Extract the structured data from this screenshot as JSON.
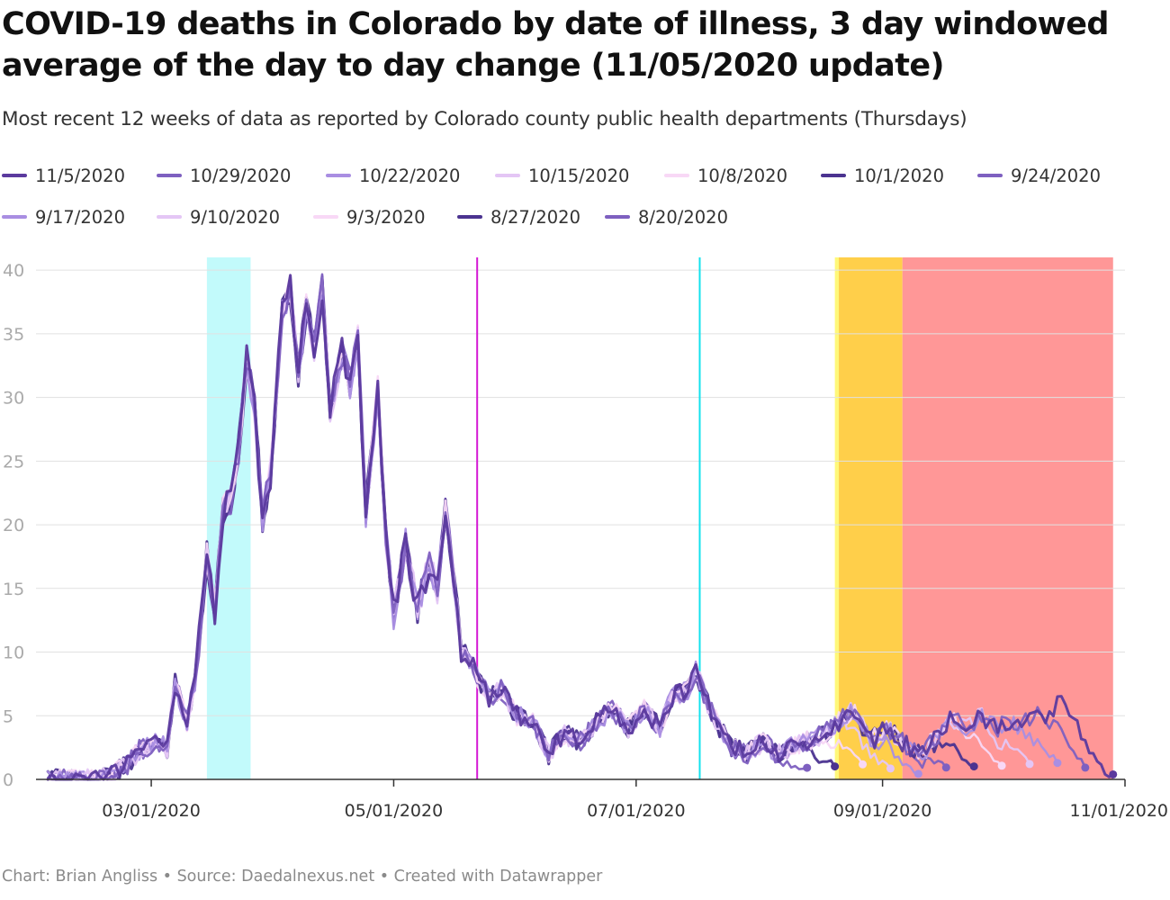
{
  "header": {
    "title": "COVID-19 deaths in Colorado by date of illness, 3 day windowed average of the day to day change (11/05/2020 update)",
    "subtitle": "Most recent 12 weeks of data as reported by Colorado county public health departments (Thursdays)"
  },
  "footer": {
    "credit": "Chart: Brian Angliss • Source: Daedalnexus.net • Created with Datawrapper"
  },
  "colors": {
    "cyan_band": "#c2fafb",
    "yellow_band": "#fff87a",
    "orange_band": "#ffcf4a",
    "red_band": "#ff9797",
    "magenta_line": "#d419d4",
    "cyan_line": "#12e2ee",
    "gridline": "#e1e1e1",
    "axis": "#333333"
  },
  "chart_data": {
    "type": "line",
    "title": "COVID-19 deaths in Colorado by date of illness, 3 day windowed average of the day to day change (11/05/2020 update)",
    "xlabel": "",
    "ylabel": "",
    "ylim": [
      0,
      41
    ],
    "yticks": [
      0,
      5,
      10,
      15,
      20,
      25,
      30,
      35,
      40
    ],
    "xlim": [
      "2020-02-01",
      "2020-11-01"
    ],
    "xticks": [
      {
        "date": "2020-03-01",
        "label": "03/01/2020"
      },
      {
        "date": "2020-05-01",
        "label": "05/01/2020"
      },
      {
        "date": "2020-07-01",
        "label": "07/01/2020"
      },
      {
        "date": "2020-09-01",
        "label": "09/01/2020"
      },
      {
        "date": "2020-11-01",
        "label": "11/01/2020"
      }
    ],
    "grid": true,
    "legend_position": "top",
    "bands": [
      {
        "start": "2020-03-15",
        "end": "2020-03-26",
        "color": "#c2fafb"
      },
      {
        "start": "2020-08-20",
        "end": "2020-08-21",
        "color": "#fff87a"
      },
      {
        "start": "2020-08-21",
        "end": "2020-09-06",
        "color": "#ffcf4a"
      },
      {
        "start": "2020-09-06",
        "end": "2020-10-29",
        "color": "#ff9797"
      }
    ],
    "vlines": [
      {
        "date": "2020-05-22",
        "color": "#d419d4"
      },
      {
        "date": "2020-07-17",
        "color": "#12e2ee"
      }
    ],
    "base_curve": [
      [
        "2020-02-04",
        0
      ],
      [
        "2020-02-15",
        0
      ],
      [
        "2020-02-20",
        0.3
      ],
      [
        "2020-02-24",
        1.2
      ],
      [
        "2020-02-27",
        2.3
      ],
      [
        "2020-03-02",
        2.8
      ],
      [
        "2020-03-05",
        2.5
      ],
      [
        "2020-03-07",
        7.5
      ],
      [
        "2020-03-10",
        4.5
      ],
      [
        "2020-03-12",
        7.5
      ],
      [
        "2020-03-15",
        17.5
      ],
      [
        "2020-03-17",
        13
      ],
      [
        "2020-03-19",
        21
      ],
      [
        "2020-03-21",
        22
      ],
      [
        "2020-03-23",
        26
      ],
      [
        "2020-03-25",
        33
      ],
      [
        "2020-03-27",
        29
      ],
      [
        "2020-03-29",
        20.5
      ],
      [
        "2020-03-31",
        24
      ],
      [
        "2020-04-03",
        37
      ],
      [
        "2020-04-05",
        38.5
      ],
      [
        "2020-04-07",
        32
      ],
      [
        "2020-04-09",
        37
      ],
      [
        "2020-04-11",
        34
      ],
      [
        "2020-04-13",
        38.5
      ],
      [
        "2020-04-15",
        29
      ],
      [
        "2020-04-18",
        33.5
      ],
      [
        "2020-04-20",
        31
      ],
      [
        "2020-04-22",
        34.5
      ],
      [
        "2020-04-24",
        21
      ],
      [
        "2020-04-27",
        30.5
      ],
      [
        "2020-04-29",
        19
      ],
      [
        "2020-05-01",
        13
      ],
      [
        "2020-05-04",
        18.5
      ],
      [
        "2020-05-07",
        13.5
      ],
      [
        "2020-05-10",
        17
      ],
      [
        "2020-05-12",
        15
      ],
      [
        "2020-05-14",
        21
      ],
      [
        "2020-05-16",
        16
      ],
      [
        "2020-05-18",
        10
      ],
      [
        "2020-05-20",
        9.5
      ],
      [
        "2020-05-22",
        8
      ],
      [
        "2020-05-25",
        6.5
      ],
      [
        "2020-05-28",
        7
      ],
      [
        "2020-06-01",
        5
      ],
      [
        "2020-06-05",
        4.5
      ],
      [
        "2020-06-09",
        2
      ],
      [
        "2020-06-13",
        3.5
      ],
      [
        "2020-06-17",
        3
      ],
      [
        "2020-06-21",
        4.5
      ],
      [
        "2020-06-25",
        5.5
      ],
      [
        "2020-06-29",
        4
      ],
      [
        "2020-07-03",
        5.5
      ],
      [
        "2020-07-07",
        4
      ],
      [
        "2020-07-10",
        6.5
      ],
      [
        "2020-07-14",
        7
      ],
      [
        "2020-07-16",
        8.5
      ],
      [
        "2020-07-19",
        6
      ],
      [
        "2020-07-22",
        4
      ],
      [
        "2020-07-25",
        2.5
      ],
      [
        "2020-07-29",
        2
      ],
      [
        "2020-08-02",
        3
      ],
      [
        "2020-08-05",
        2
      ],
      [
        "2020-08-09",
        2.5
      ],
      [
        "2020-08-13",
        3
      ],
      [
        "2020-08-17",
        3.5
      ],
      [
        "2020-08-21",
        4.5
      ],
      [
        "2020-08-25",
        5.5
      ],
      [
        "2020-08-29",
        3
      ],
      [
        "2020-09-02",
        4
      ],
      [
        "2020-09-06",
        3
      ],
      [
        "2020-09-10",
        2
      ],
      [
        "2020-09-14",
        3
      ],
      [
        "2020-09-18",
        5
      ],
      [
        "2020-09-22",
        4
      ],
      [
        "2020-09-26",
        5
      ],
      [
        "2020-09-30",
        4
      ],
      [
        "2020-10-04",
        4.5
      ],
      [
        "2020-10-08",
        5
      ],
      [
        "2020-10-12",
        5
      ],
      [
        "2020-10-16",
        6
      ],
      [
        "2020-10-20",
        5
      ],
      [
        "2020-10-24",
        3
      ],
      [
        "2020-10-28",
        1
      ]
    ],
    "series": [
      {
        "name": "11/5/2020",
        "color": "#5b3a9e",
        "end": "2020-10-29",
        "width": 3.0
      },
      {
        "name": "10/29/2020",
        "color": "#7e60c0",
        "end": "2020-10-22",
        "width": 2.6
      },
      {
        "name": "10/22/2020",
        "color": "#a98ee2",
        "end": "2020-10-15",
        "width": 2.4
      },
      {
        "name": "10/15/2020",
        "color": "#e4c6f5",
        "end": "2020-10-08",
        "width": 2.4
      },
      {
        "name": "10/8/2020",
        "color": "#f8d8f6",
        "end": "2020-10-01",
        "width": 2.4
      },
      {
        "name": "10/1/2020",
        "color": "#4b3390",
        "end": "2020-09-24",
        "width": 3.0
      },
      {
        "name": "9/24/2020",
        "color": "#7e60c0",
        "end": "2020-09-17",
        "width": 2.6
      },
      {
        "name": "9/17/2020",
        "color": "#a98ee2",
        "end": "2020-09-10",
        "width": 2.4
      },
      {
        "name": "9/10/2020",
        "color": "#e4c6f5",
        "end": "2020-09-03",
        "width": 2.4
      },
      {
        "name": "9/3/2020",
        "color": "#f8d8f6",
        "end": "2020-08-27",
        "width": 2.4
      },
      {
        "name": "8/27/2020",
        "color": "#4b3390",
        "end": "2020-08-20",
        "width": 3.0
      },
      {
        "name": "8/20/2020",
        "color": "#7e60c0",
        "end": "2020-08-13",
        "width": 2.6
      }
    ]
  }
}
